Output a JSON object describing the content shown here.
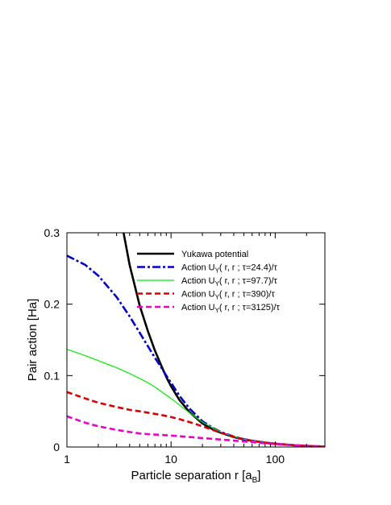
{
  "chart_data": {
    "type": "line",
    "xlabel": "Particle separation r [a",
    "xlabel_sub": "B",
    "xlabel_end": "]",
    "ylabel": "Pair action [Ha]",
    "xscale": "log",
    "xlim": [
      1,
      300
    ],
    "ylim": [
      0,
      0.3
    ],
    "xticks": [
      1,
      10,
      100
    ],
    "xtick_labels": [
      "1",
      "10",
      "100"
    ],
    "yticks": [
      0,
      0.1,
      0.2,
      0.3
    ],
    "ytick_labels": [
      "0",
      "0.1",
      "0.2",
      "0.3"
    ],
    "grid": false,
    "legend_position": "top-right",
    "series": [
      {
        "name": "Yukawa potential",
        "color": "#000000",
        "dash": "solid",
        "x": [
          3.5,
          4,
          5,
          6,
          7,
          8,
          9,
          10,
          12,
          15,
          20,
          25,
          30,
          40,
          50,
          60,
          80,
          100,
          150,
          200,
          300
        ],
        "y": [
          0.3,
          0.255,
          0.198,
          0.162,
          0.135,
          0.115,
          0.098,
          0.085,
          0.066,
          0.049,
          0.033,
          0.025,
          0.02,
          0.014,
          0.0105,
          0.0085,
          0.006,
          0.0045,
          0.0025,
          0.0015,
          0.0005
        ]
      },
      {
        "name_parts": [
          "Action U",
          "Y",
          "( r, r ; τ=24.4)/τ"
        ],
        "color": "#0000cc",
        "dash": "dashdot",
        "x": [
          1,
          1.5,
          2,
          3,
          4,
          5,
          6,
          7,
          8,
          9,
          10,
          12,
          15,
          20,
          25,
          30,
          40,
          50,
          60,
          80,
          100,
          150,
          200,
          300
        ],
        "y": [
          0.268,
          0.255,
          0.24,
          0.21,
          0.183,
          0.16,
          0.141,
          0.125,
          0.112,
          0.1,
          0.09,
          0.072,
          0.054,
          0.036,
          0.027,
          0.021,
          0.0145,
          0.011,
          0.0088,
          0.0062,
          0.0046,
          0.0026,
          0.0016,
          0.0006
        ]
      },
      {
        "name_parts": [
          "Action U",
          "Y",
          "( r, r ; τ=97.7)/τ"
        ],
        "color": "#00ee00",
        "dash": "solid",
        "x": [
          1,
          1.5,
          2,
          3,
          4,
          5,
          6,
          7,
          8,
          10,
          12,
          15,
          20,
          25,
          30,
          40,
          50,
          60,
          80,
          100,
          150,
          200,
          300
        ],
        "y": [
          0.137,
          0.128,
          0.121,
          0.111,
          0.103,
          0.096,
          0.09,
          0.084,
          0.078,
          0.068,
          0.059,
          0.048,
          0.035,
          0.027,
          0.021,
          0.0145,
          0.011,
          0.0088,
          0.0062,
          0.0046,
          0.0026,
          0.0016,
          0.0006
        ]
      },
      {
        "name_parts": [
          "Action U",
          "Y",
          "( r, r ; τ=390)/τ"
        ],
        "color": "#dd0000",
        "dash": "dashed",
        "x": [
          1,
          1.5,
          2,
          3,
          4,
          5,
          6,
          8,
          10,
          12,
          15,
          20,
          25,
          30,
          40,
          50,
          60,
          80,
          100,
          150,
          200,
          300
        ],
        "y": [
          0.077,
          0.068,
          0.062,
          0.056,
          0.052,
          0.05,
          0.048,
          0.045,
          0.042,
          0.039,
          0.035,
          0.029,
          0.024,
          0.02,
          0.0145,
          0.011,
          0.0088,
          0.0062,
          0.0046,
          0.0026,
          0.0016,
          0.0006
        ]
      },
      {
        "name_parts": [
          "Action U",
          "Y",
          "( r, r ; τ=3125)/τ"
        ],
        "color": "#ee00cc",
        "dash": "dashed",
        "x": [
          1,
          1.5,
          2,
          3,
          4,
          5,
          6,
          8,
          10,
          15,
          20,
          30,
          40,
          50,
          60,
          80,
          100,
          150,
          200,
          300
        ],
        "y": [
          0.043,
          0.034,
          0.029,
          0.024,
          0.021,
          0.019,
          0.018,
          0.017,
          0.016,
          0.014,
          0.0125,
          0.0105,
          0.009,
          0.0078,
          0.0068,
          0.0052,
          0.004,
          0.0024,
          0.0015,
          0.0006
        ]
      }
    ]
  }
}
